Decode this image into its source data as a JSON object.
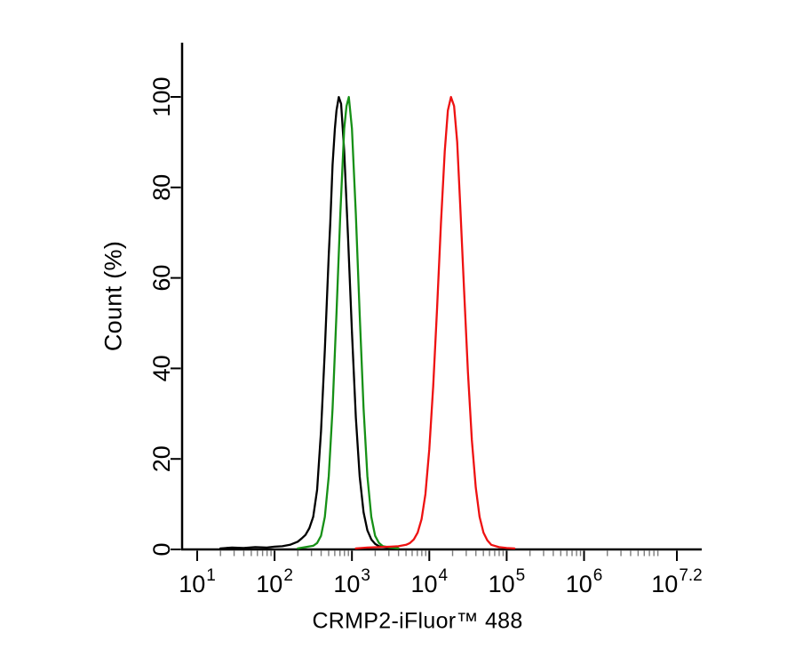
{
  "figure": {
    "background": "#ffffff",
    "axis_color": "#000000",
    "tick_label_color": "#000000",
    "minor_tick_color": "#7d7d7d"
  },
  "chart_data": {
    "type": "line",
    "subtype": "flow-cytometry-histogram",
    "title": "",
    "xlabel": "CRMP2-iFluor™ 488",
    "ylabel": "Count (%)",
    "x_scale": "log10",
    "x_tick_base": "10",
    "x_tick_exponents": [
      1,
      2,
      3,
      4,
      5,
      6,
      7.2
    ],
    "xlim_log10": [
      0.8,
      7.4
    ],
    "y_ticks": [
      0,
      20,
      40,
      60,
      80,
      100
    ],
    "ylim": [
      0,
      112
    ],
    "grid": false,
    "legend": "none",
    "series": [
      {
        "name": "black-curve",
        "color": "#000000",
        "peak_x_log10": 2.83,
        "peak_y": 100,
        "points": [
          [
            1.3,
            0
          ],
          [
            1.45,
            0.2
          ],
          [
            1.6,
            0.1
          ],
          [
            1.75,
            0.3
          ],
          [
            1.9,
            0.2
          ],
          [
            2.0,
            0.4
          ],
          [
            2.1,
            0.5
          ],
          [
            2.2,
            0.8
          ],
          [
            2.3,
            1.5
          ],
          [
            2.35,
            2.2
          ],
          [
            2.4,
            3.0
          ],
          [
            2.45,
            4.5
          ],
          [
            2.5,
            7.0
          ],
          [
            2.55,
            13.0
          ],
          [
            2.6,
            26.0
          ],
          [
            2.65,
            44.0
          ],
          [
            2.7,
            65.0
          ],
          [
            2.72,
            72.0
          ],
          [
            2.75,
            85.0
          ],
          [
            2.78,
            93.0
          ],
          [
            2.8,
            97.0
          ],
          [
            2.83,
            100.0
          ],
          [
            2.86,
            98.5
          ],
          [
            2.9,
            88.0
          ],
          [
            2.95,
            69.0
          ],
          [
            3.0,
            48.0
          ],
          [
            3.05,
            29.0
          ],
          [
            3.1,
            16.0
          ],
          [
            3.15,
            8.0
          ],
          [
            3.2,
            4.0
          ],
          [
            3.25,
            2.0
          ],
          [
            3.3,
            1.0
          ],
          [
            3.35,
            0.5
          ],
          [
            3.45,
            0.2
          ],
          [
            3.55,
            0.1
          ],
          [
            3.6,
            0
          ]
        ]
      },
      {
        "name": "green-curve",
        "color": "#169016",
        "peak_x_log10": 2.96,
        "peak_y": 100,
        "points": [
          [
            2.3,
            0
          ],
          [
            2.4,
            0.3
          ],
          [
            2.5,
            0.6
          ],
          [
            2.55,
            1.2
          ],
          [
            2.6,
            2.8
          ],
          [
            2.65,
            7.0
          ],
          [
            2.7,
            16.0
          ],
          [
            2.75,
            31.0
          ],
          [
            2.8,
            52.0
          ],
          [
            2.85,
            74.0
          ],
          [
            2.9,
            93.0
          ],
          [
            2.93,
            98.0
          ],
          [
            2.96,
            100.0
          ],
          [
            3.0,
            93.0
          ],
          [
            3.05,
            74.0
          ],
          [
            3.1,
            52.0
          ],
          [
            3.15,
            31.0
          ],
          [
            3.2,
            16.0
          ],
          [
            3.25,
            7.0
          ],
          [
            3.3,
            2.8
          ],
          [
            3.35,
            1.2
          ],
          [
            3.4,
            0.5
          ],
          [
            3.5,
            0.2
          ],
          [
            3.6,
            0
          ]
        ]
      },
      {
        "name": "red-curve",
        "color": "#ee1111",
        "peak_x_log10": 4.28,
        "peak_y": 100,
        "points": [
          [
            3.05,
            0
          ],
          [
            3.2,
            0.2
          ],
          [
            3.35,
            0.3
          ],
          [
            3.5,
            0.4
          ],
          [
            3.6,
            0.5
          ],
          [
            3.7,
            0.8
          ],
          [
            3.75,
            1.2
          ],
          [
            3.8,
            2.0
          ],
          [
            3.85,
            3.5
          ],
          [
            3.9,
            6.5
          ],
          [
            3.95,
            12.0
          ],
          [
            4.0,
            22.0
          ],
          [
            4.05,
            36.0
          ],
          [
            4.1,
            53.0
          ],
          [
            4.15,
            72.0
          ],
          [
            4.2,
            88.0
          ],
          [
            4.24,
            97.0
          ],
          [
            4.28,
            100.0
          ],
          [
            4.32,
            98.0
          ],
          [
            4.36,
            90.0
          ],
          [
            4.4,
            76.0
          ],
          [
            4.45,
            57.0
          ],
          [
            4.5,
            39.0
          ],
          [
            4.55,
            24.0
          ],
          [
            4.6,
            13.5
          ],
          [
            4.65,
            7.0
          ],
          [
            4.7,
            3.5
          ],
          [
            4.75,
            1.8
          ],
          [
            4.8,
            0.8
          ],
          [
            4.9,
            0.3
          ],
          [
            5.0,
            0.1
          ],
          [
            5.1,
            0
          ]
        ]
      }
    ]
  }
}
